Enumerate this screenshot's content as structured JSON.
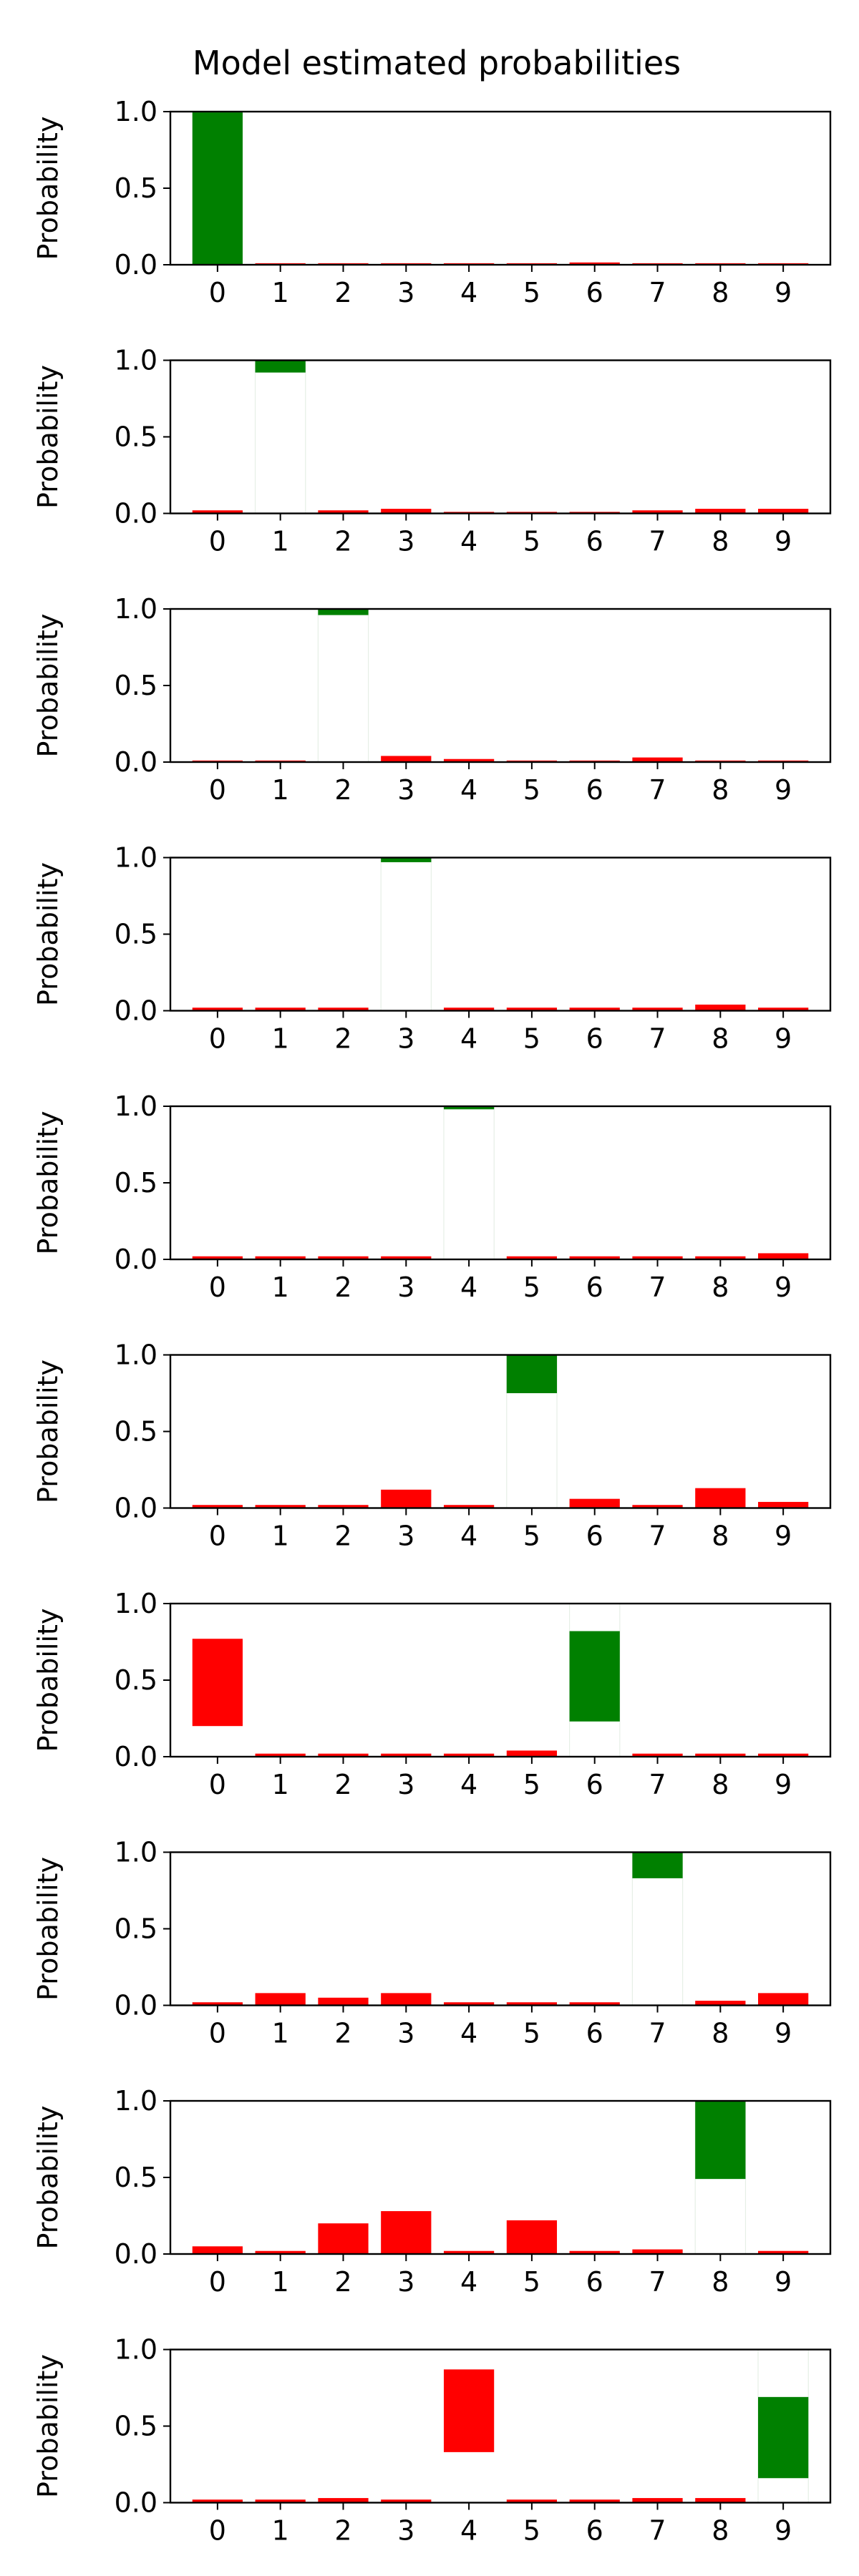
{
  "figure": {
    "title": "Model estimated probabilities"
  },
  "colors": {
    "correct": "#008000",
    "incorrect": "#ff0000",
    "axis": "#000000",
    "background": "#ffffff"
  },
  "chart_data": {
    "type": "bar",
    "layout": "10 vertically stacked subplots sharing the same axes",
    "categories": [
      "0",
      "1",
      "2",
      "3",
      "4",
      "5",
      "6",
      "7",
      "8",
      "9"
    ],
    "ylabel": "Probability",
    "xlabel": "",
    "ylim": [
      0,
      1
    ],
    "yticks": [
      "0.0",
      "0.5",
      "1.0"
    ],
    "grid": false,
    "legend": "none",
    "bar_style": "floating bars spanning from a lower value to an upper value; green = highlighted class, red = other classes",
    "subplots": [
      {
        "highlight": 0,
        "lower": [
          0.0,
          0.0,
          0.0,
          0.0,
          0.0,
          0.0,
          0.0,
          0.0,
          0.0,
          0.0
        ],
        "upper": [
          0.995,
          0.01,
          0.01,
          0.01,
          0.01,
          0.01,
          0.015,
          0.01,
          0.01,
          0.01
        ]
      },
      {
        "highlight": 1,
        "lower": [
          0.0,
          0.92,
          0.0,
          0.0,
          0.0,
          0.0,
          0.0,
          0.0,
          0.0,
          0.0
        ],
        "upper": [
          0.02,
          1.0,
          0.02,
          0.03,
          0.01,
          0.01,
          0.01,
          0.02,
          0.03,
          0.03
        ]
      },
      {
        "highlight": 2,
        "lower": [
          0.0,
          0.0,
          0.96,
          0.0,
          0.0,
          0.0,
          0.0,
          0.0,
          0.0,
          0.0
        ],
        "upper": [
          0.01,
          0.01,
          1.0,
          0.04,
          0.02,
          0.01,
          0.01,
          0.03,
          0.01,
          0.01
        ]
      },
      {
        "highlight": 3,
        "lower": [
          0.0,
          0.0,
          0.0,
          0.97,
          0.0,
          0.0,
          0.0,
          0.0,
          0.0,
          0.0
        ],
        "upper": [
          0.02,
          0.02,
          0.02,
          1.0,
          0.02,
          0.02,
          0.02,
          0.02,
          0.04,
          0.02
        ]
      },
      {
        "highlight": 4,
        "lower": [
          0.0,
          0.0,
          0.0,
          0.0,
          0.98,
          0.0,
          0.0,
          0.0,
          0.0,
          0.0
        ],
        "upper": [
          0.02,
          0.02,
          0.02,
          0.02,
          1.0,
          0.02,
          0.02,
          0.02,
          0.02,
          0.04
        ]
      },
      {
        "highlight": 5,
        "lower": [
          0.0,
          0.0,
          0.0,
          0.0,
          0.0,
          0.75,
          0.0,
          0.0,
          0.0,
          0.0
        ],
        "upper": [
          0.02,
          0.02,
          0.02,
          0.12,
          0.02,
          1.0,
          0.06,
          0.02,
          0.13,
          0.04
        ]
      },
      {
        "highlight": 6,
        "lower": [
          0.2,
          0.0,
          0.0,
          0.0,
          0.0,
          0.0,
          0.23,
          0.0,
          0.0,
          0.0
        ],
        "upper": [
          0.77,
          0.02,
          0.02,
          0.02,
          0.02,
          0.04,
          0.82,
          0.02,
          0.02,
          0.02
        ]
      },
      {
        "highlight": 7,
        "lower": [
          0.0,
          0.0,
          0.0,
          0.0,
          0.0,
          0.0,
          0.0,
          0.83,
          0.0,
          0.0
        ],
        "upper": [
          0.02,
          0.08,
          0.05,
          0.08,
          0.02,
          0.02,
          0.02,
          1.0,
          0.03,
          0.08
        ]
      },
      {
        "highlight": 8,
        "lower": [
          0.0,
          0.0,
          0.0,
          0.0,
          0.0,
          0.0,
          0.0,
          0.0,
          0.49,
          0.0
        ],
        "upper": [
          0.05,
          0.02,
          0.2,
          0.28,
          0.02,
          0.22,
          0.02,
          0.03,
          1.0,
          0.02
        ]
      },
      {
        "highlight": 9,
        "lower": [
          0.0,
          0.0,
          0.0,
          0.0,
          0.33,
          0.0,
          0.0,
          0.0,
          0.0,
          0.16
        ],
        "upper": [
          0.02,
          0.02,
          0.03,
          0.02,
          0.87,
          0.02,
          0.02,
          0.03,
          0.03,
          0.69
        ]
      }
    ]
  }
}
